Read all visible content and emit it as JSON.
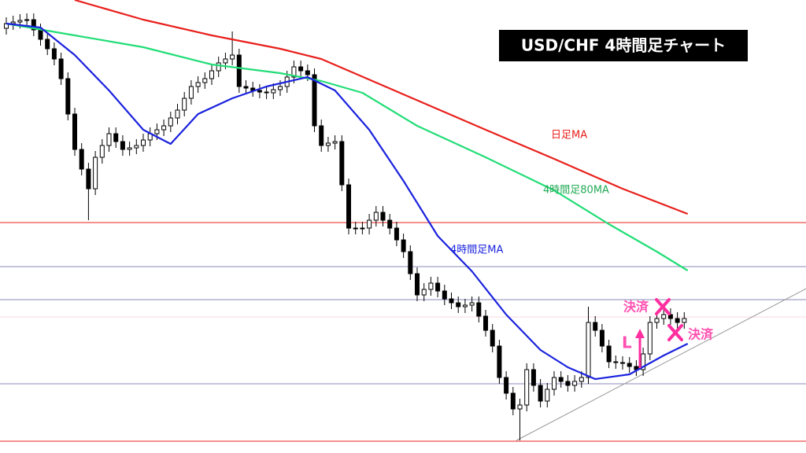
{
  "chart_data": {
    "type": "candlestick",
    "title": "USD/CHF  4時間足チャート",
    "xlim": [
      -0.92,
      116.78
    ],
    "ylim": [
      0,
      576
    ],
    "open": [
      540,
      546,
      548,
      550,
      551,
      538,
      526,
      514,
      501,
      476,
      431,
      386,
      361,
      336,
      376,
      391,
      406,
      396,
      386,
      388,
      391,
      398,
      406,
      411,
      416,
      426,
      436,
      451,
      466,
      471,
      476,
      486,
      496,
      501,
      506,
      466,
      464,
      461,
      459,
      458,
      462,
      466,
      478,
      491,
      486,
      481,
      416,
      391,
      394,
      396,
      341,
      286,
      286,
      286,
      296,
      306,
      296,
      286,
      271,
      256,
      228,
      201,
      208,
      216,
      206,
      196,
      191,
      186,
      188,
      191,
      174,
      156,
      136,
      96,
      76,
      56,
      61,
      106,
      86,
      66,
      81,
      96,
      91,
      86,
      91,
      96,
      166,
      156,
      136,
      116,
      115,
      114,
      110,
      106,
      126,
      166,
      171,
      176,
      171,
      166
    ],
    "high": [
      554,
      556,
      558,
      559,
      559,
      546,
      534,
      522,
      509,
      484,
      439,
      394,
      369,
      384,
      399,
      414,
      414,
      404,
      396,
      399,
      406,
      414,
      419,
      424,
      434,
      444,
      459,
      474,
      479,
      484,
      494,
      504,
      509,
      536,
      514,
      474,
      472,
      469,
      467,
      470,
      474,
      486,
      499,
      499,
      494,
      489,
      424,
      402,
      404,
      404,
      349,
      294,
      294,
      304,
      314,
      314,
      304,
      294,
      279,
      264,
      236,
      216,
      224,
      224,
      214,
      204,
      199,
      196,
      199,
      199,
      182,
      164,
      144,
      104,
      84,
      69,
      114,
      114,
      94,
      89,
      104,
      104,
      99,
      99,
      104,
      186,
      174,
      164,
      144,
      124,
      123,
      122,
      118,
      134,
      174,
      179,
      184,
      184,
      179,
      179
    ],
    "low": [
      532,
      538,
      540,
      542,
      530,
      518,
      506,
      493,
      468,
      423,
      378,
      353,
      296,
      328,
      368,
      383,
      388,
      378,
      378,
      380,
      383,
      390,
      398,
      403,
      408,
      418,
      428,
      443,
      458,
      463,
      468,
      478,
      488,
      493,
      458,
      456,
      453,
      451,
      450,
      450,
      454,
      458,
      470,
      478,
      473,
      408,
      383,
      383,
      386,
      333,
      278,
      278,
      278,
      278,
      288,
      288,
      278,
      263,
      248,
      220,
      193,
      193,
      200,
      198,
      188,
      183,
      178,
      178,
      180,
      166,
      148,
      128,
      88,
      68,
      48,
      16,
      53,
      78,
      58,
      58,
      73,
      83,
      78,
      78,
      83,
      88,
      148,
      128,
      108,
      107,
      106,
      102,
      98,
      98,
      118,
      158,
      163,
      163,
      158,
      158
    ],
    "close": [
      546,
      548,
      550,
      551,
      538,
      526,
      514,
      501,
      476,
      431,
      386,
      361,
      336,
      376,
      391,
      406,
      396,
      386,
      388,
      391,
      398,
      406,
      411,
      416,
      426,
      436,
      451,
      466,
      471,
      476,
      486,
      496,
      501,
      506,
      466,
      464,
      461,
      459,
      458,
      462,
      466,
      478,
      491,
      486,
      481,
      416,
      391,
      394,
      396,
      341,
      286,
      286,
      286,
      296,
      306,
      296,
      286,
      271,
      256,
      228,
      201,
      208,
      216,
      206,
      196,
      191,
      186,
      188,
      191,
      174,
      156,
      136,
      96,
      76,
      56,
      61,
      106,
      86,
      66,
      81,
      96,
      91,
      86,
      91,
      96,
      166,
      156,
      136,
      116,
      115,
      114,
      110,
      106,
      126,
      166,
      171,
      176,
      171,
      166,
      171
    ],
    "series": [
      {
        "name": "日足MA",
        "color": "#e8201c",
        "x": [
          10,
          20,
          30,
          40,
          46,
          54,
          62,
          70,
          80,
          90,
          99.5
        ],
        "values": [
          576,
          551,
          531,
          514,
          501,
          471,
          441,
          411,
          374,
          336,
          304
        ]
      },
      {
        "name": "4時間足80MA",
        "color": "#22dd77",
        "x": [
          0,
          10,
          20,
          30,
          40,
          46,
          52,
          60,
          70,
          80,
          88,
          95,
          99.5
        ],
        "values": [
          546,
          531,
          516,
          494,
          483,
          473,
          458,
          416,
          376,
          334,
          291,
          256,
          232
        ]
      },
      {
        "name": "4時間足MA",
        "color": "#1a22dd",
        "x": [
          0,
          5,
          10,
          15,
          20,
          24,
          28,
          33,
          38,
          44,
          48,
          53,
          58,
          63,
          68,
          73,
          78,
          82,
          86,
          91,
          96,
          99.5
        ],
        "values": [
          546,
          541,
          506,
          461,
          411,
          393,
          431,
          451,
          466,
          478,
          461,
          411,
          346,
          276,
          231,
          176,
          131,
          109,
          94,
          100,
          124,
          139
        ]
      }
    ],
    "levels": [
      {
        "value": 293,
        "color": "#e8201c"
      },
      {
        "value": 15,
        "color": "#e8201c"
      },
      {
        "value": 237,
        "color": "#8888bb"
      },
      {
        "value": 195,
        "color": "#8888bb"
      },
      {
        "value": 88,
        "color": "#8888bb"
      },
      {
        "value": 173,
        "color": "#f4d8e0"
      }
    ],
    "trendline": {
      "x": [
        74.5,
        116.8
      ],
      "values": [
        16,
        209
      ],
      "color": "#999999"
    },
    "annotations": [
      "決済",
      "決済",
      "L"
    ]
  }
}
